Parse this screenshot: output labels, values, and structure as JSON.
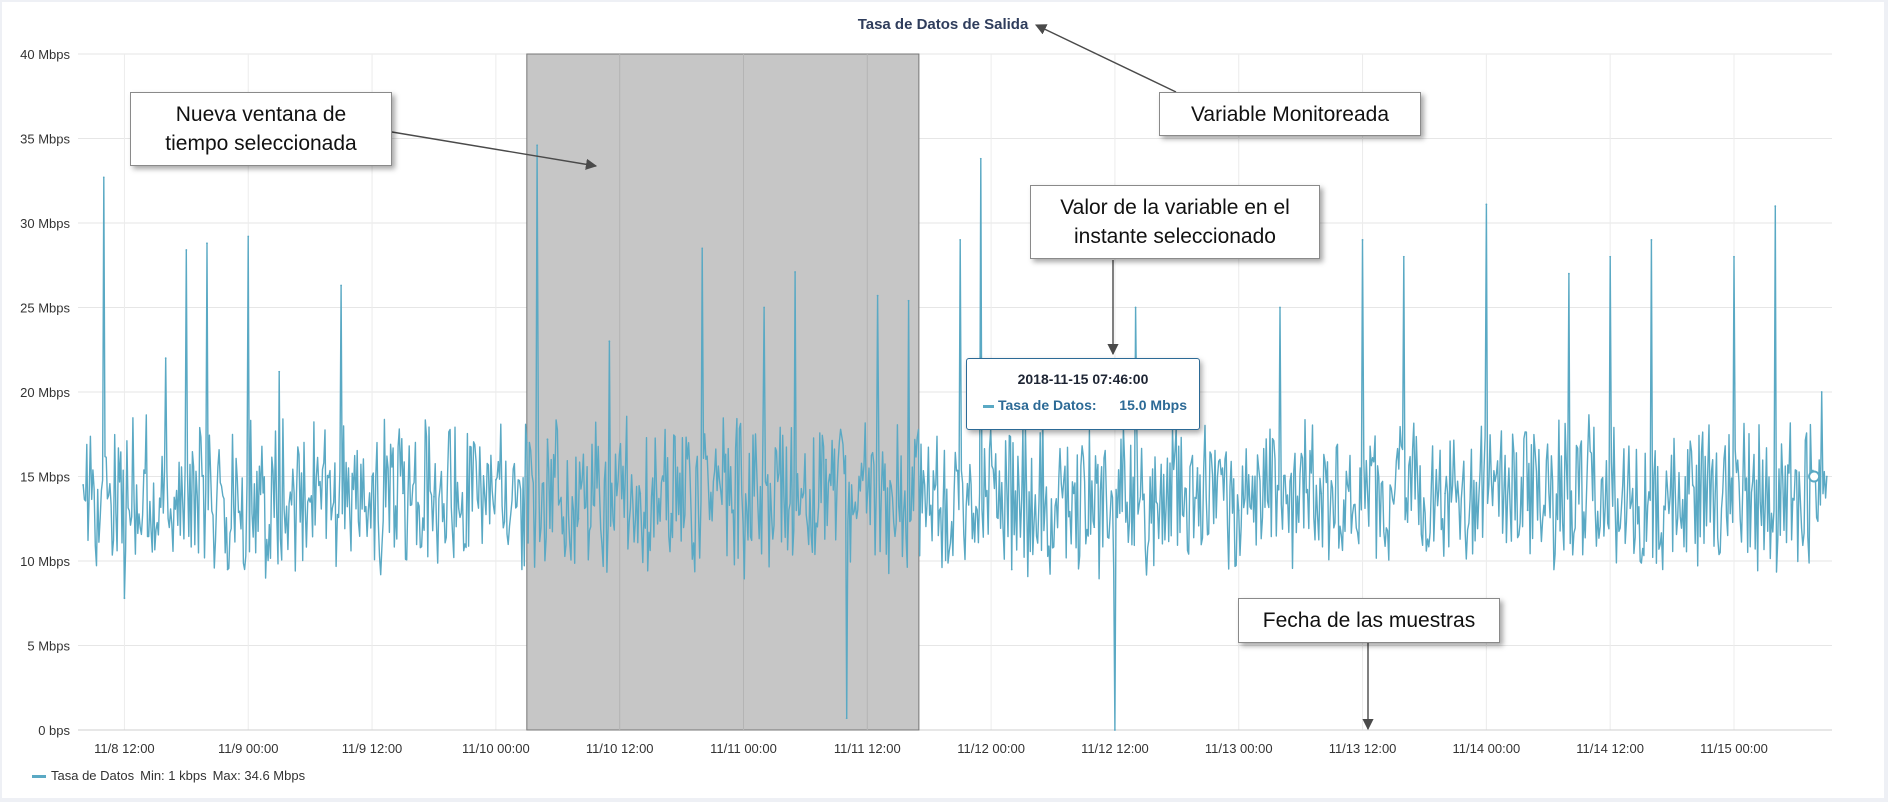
{
  "chart_data": {
    "type": "line",
    "title": "Tasa de Datos de Salida",
    "y_ticks": [
      "0 bps",
      "5 Mbps",
      "10 Mbps",
      "15 Mbps",
      "20 Mbps",
      "25 Mbps",
      "30 Mbps",
      "35 Mbps",
      "40 Mbps"
    ],
    "x_ticks": [
      "11/8 12:00",
      "11/9 00:00",
      "11/9 12:00",
      "11/10 00:00",
      "11/10 12:00",
      "11/11 00:00",
      "11/11 12:00",
      "11/12 00:00",
      "11/12 12:00",
      "11/13 00:00",
      "11/13 12:00",
      "11/14 00:00",
      "11/14 12:00",
      "11/15 00:00"
    ],
    "x_range": [
      "2018-11-08 07:30",
      "2018-11-15 09:30"
    ],
    "ylim": [
      0,
      40
    ],
    "y_unit": "Mbps",
    "grid": true,
    "legend_placement": "bottom-left",
    "series": [
      {
        "name": "Tasa de Datos",
        "color": "#5aa9c4",
        "points": [
          [
            "2018-11-08 08:00",
            14.5
          ],
          [
            "2018-11-08 10:00",
            32.7
          ],
          [
            "2018-11-08 12:00",
            7.8
          ],
          [
            "2018-11-08 14:00",
            15.2
          ],
          [
            "2018-11-08 16:00",
            22.0
          ],
          [
            "2018-11-08 18:00",
            28.4
          ],
          [
            "2018-11-08 20:00",
            28.8
          ],
          [
            "2018-11-08 22:00",
            9.5
          ],
          [
            "2018-11-09 00:00",
            29.2
          ],
          [
            "2018-11-09 03:00",
            21.2
          ],
          [
            "2018-11-09 06:00",
            13.5
          ],
          [
            "2018-11-09 09:00",
            26.3
          ],
          [
            "2018-11-09 12:00",
            15.0
          ],
          [
            "2018-11-09 15:00",
            14.0
          ],
          [
            "2018-11-09 18:00",
            13.8
          ],
          [
            "2018-11-09 21:00",
            11.0
          ],
          [
            "2018-11-10 00:00",
            14.8
          ],
          [
            "2018-11-10 03:00",
            17.0
          ],
          [
            "2018-11-10 04:00",
            34.6
          ],
          [
            "2018-11-10 05:00",
            17.2
          ],
          [
            "2018-11-10 08:00",
            12.5
          ],
          [
            "2018-11-10 11:00",
            23.0
          ],
          [
            "2018-11-10 14:00",
            14.0
          ],
          [
            "2018-11-10 17:00",
            12.8
          ],
          [
            "2018-11-10 20:00",
            28.5
          ],
          [
            "2018-11-10 23:00",
            13.0
          ],
          [
            "2018-11-11 02:00",
            25.0
          ],
          [
            "2018-11-11 05:00",
            27.1
          ],
          [
            "2018-11-11 08:00",
            16.0
          ],
          [
            "2018-11-11 10:00",
            0.7
          ],
          [
            "2018-11-11 13:00",
            25.7
          ],
          [
            "2018-11-11 16:00",
            25.4
          ],
          [
            "2018-11-11 19:00",
            13.0
          ],
          [
            "2018-11-11 21:00",
            29.0
          ],
          [
            "2018-11-11 23:00",
            33.8
          ],
          [
            "2018-11-12 02:00",
            9.5
          ],
          [
            "2018-11-12 05:00",
            19.0
          ],
          [
            "2018-11-12 08:00",
            14.0
          ],
          [
            "2018-11-12 10:00",
            12.0
          ],
          [
            "2018-11-12 12:00",
            0.0
          ],
          [
            "2018-11-12 14:00",
            25.0
          ],
          [
            "2018-11-12 16:00",
            13.5
          ],
          [
            "2018-11-12 20:00",
            15.5
          ],
          [
            "2018-11-13 00:00",
            13.0
          ],
          [
            "2018-11-13 04:00",
            25.0
          ],
          [
            "2018-11-13 08:00",
            14.0
          ],
          [
            "2018-11-13 12:00",
            29.0
          ],
          [
            "2018-11-13 16:00",
            28.0
          ],
          [
            "2018-11-13 20:00",
            14.0
          ],
          [
            "2018-11-14 00:00",
            31.1
          ],
          [
            "2018-11-14 04:00",
            13.0
          ],
          [
            "2018-11-14 08:00",
            27.0
          ],
          [
            "2018-11-14 12:00",
            28.0
          ],
          [
            "2018-11-14 16:00",
            29.0
          ],
          [
            "2018-11-14 20:00",
            14.5
          ],
          [
            "2018-11-15 00:00",
            28.0
          ],
          [
            "2018-11-15 04:00",
            31.0
          ],
          [
            "2018-11-15 07:46",
            15.0
          ],
          [
            "2018-11-15 08:30",
            20.0
          ],
          [
            "2018-11-15 09:00",
            15.0
          ]
        ]
      }
    ],
    "selection_band": [
      "2018-11-10 03:00",
      "2018-11-11 17:00"
    ],
    "tooltip": {
      "date": "2018-11-15 07:46:00",
      "series_label": "Tasa de Datos:",
      "value_label": "15.0 Mbps",
      "time": "2018-11-15 07:46",
      "value": 15.0
    },
    "legend": {
      "name": "Tasa de Datos",
      "min_text": "Min: 1 kbps",
      "max_text": "Max: 34.6 Mbps"
    }
  },
  "annotations": {
    "variable": "Variable Monitoreada",
    "window": "Nueva ventana de\ntiempo seleccionada",
    "value": "Valor de la variable en el\ninstante seleccionado",
    "date": "Fecha de las muestras"
  }
}
